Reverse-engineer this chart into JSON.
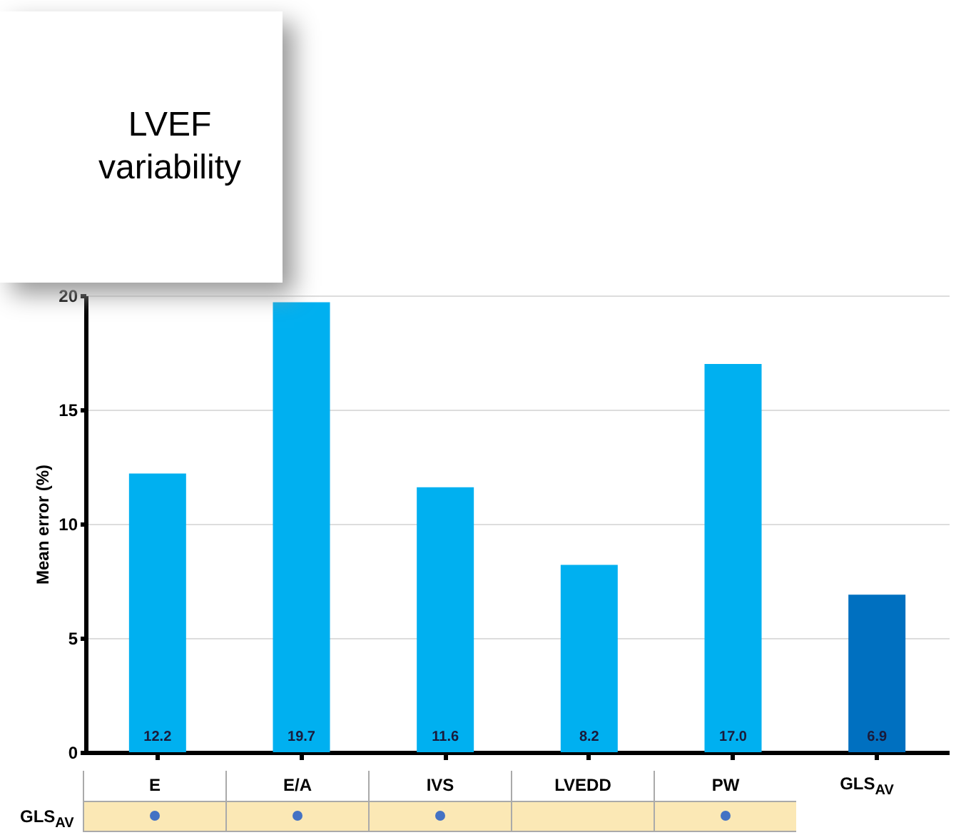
{
  "chart_data": {
    "type": "bar",
    "title": "LVEF variability",
    "ylabel": "Mean error (%)",
    "categories": [
      "E",
      "E/A",
      "IVS",
      "LVEDD",
      "PW",
      "GLS$_{AV}$"
    ],
    "values": [
      12.2,
      19.7,
      11.6,
      8.2,
      17,
      6.9
    ],
    "value_labels": [
      "12.2",
      "19.7",
      "11.6",
      "8.2",
      "17.0",
      "6.9"
    ],
    "colors": [
      "#00b0f0",
      "#00b0f0",
      "#00b0f0",
      "#00b0f0",
      "#00b0f0",
      "#0070c0"
    ],
    "ylim": [
      0,
      20
    ],
    "yticks": [
      0,
      5,
      10,
      15,
      20
    ],
    "grid": "y",
    "annotations": [
      "GLS$_{AV}$"
    ]
  }
}
